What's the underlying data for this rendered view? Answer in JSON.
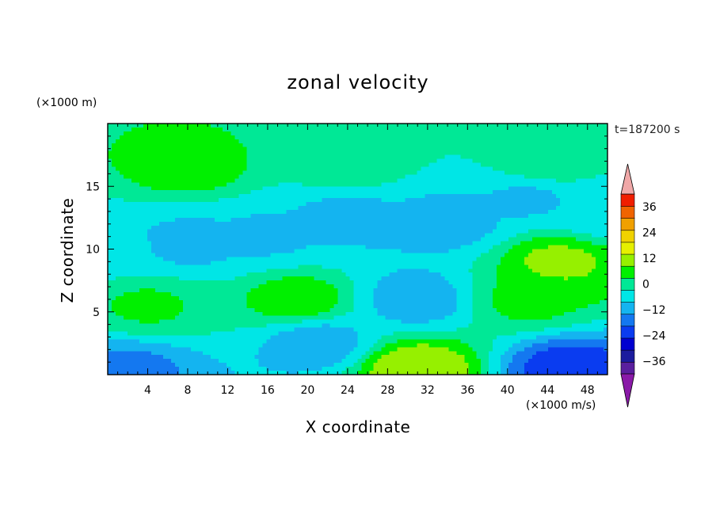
{
  "chart_data": {
    "type": "heatmap",
    "title": "zonal velocity",
    "xlabel": "X coordinate",
    "ylabel": "Z coordinate",
    "x_unit": "(×1000 m/s)",
    "y_unit": "(×1000 m)",
    "time_label": "t=187200 s",
    "xlim": [
      0,
      50
    ],
    "ylim": [
      0,
      20
    ],
    "x_ticks": [
      4,
      8,
      12,
      16,
      20,
      24,
      28,
      32,
      36,
      40,
      44,
      48
    ],
    "y_ticks": [
      5,
      10,
      15
    ],
    "colorbar": {
      "levels": [
        -42,
        -36,
        -30,
        -24,
        -18,
        -12,
        -6,
        0,
        6,
        12,
        18,
        24,
        30,
        36,
        42
      ],
      "colors": [
        "#5a1f9e",
        "#1c1c9e",
        "#0000d0",
        "#0a3cf0",
        "#1478f0",
        "#14b4f0",
        "#00e6e6",
        "#00e896",
        "#00f000",
        "#96f000",
        "#e6f000",
        "#f0d200",
        "#f0a000",
        "#f06400",
        "#f01e00"
      ],
      "under_color": "#8a1aa8",
      "over_color": "#f0a8a8",
      "tick_values": [
        36,
        24,
        12,
        0,
        -12,
        -24,
        -36
      ],
      "tick_labels": [
        "36",
        "24",
        "12",
        "0",
        "−12",
        "−24",
        "−36"
      ]
    },
    "features": [
      {
        "x": 0,
        "z": 10,
        "u": -4
      },
      {
        "x": 8,
        "z": 10.5,
        "u": -8
      },
      {
        "x": 16,
        "z": 11,
        "u": -7
      },
      {
        "x": 24,
        "z": 12.5,
        "u": -8
      },
      {
        "x": 34,
        "z": 12,
        "u": -9
      },
      {
        "x": 42,
        "z": 14,
        "u": -7
      },
      {
        "x": 50,
        "z": 13,
        "u": -6
      },
      {
        "x": 8,
        "z": 16.5,
        "u": 9
      },
      {
        "x": 24,
        "z": 17,
        "u": 5
      },
      {
        "x": 44,
        "z": 17,
        "u": 5
      },
      {
        "x": 4,
        "z": 5.5,
        "u": 7
      },
      {
        "x": 19,
        "z": 6,
        "u": 10
      },
      {
        "x": 45,
        "z": 9,
        "u": 14
      },
      {
        "x": 42,
        "z": 6,
        "u": 8
      },
      {
        "x": 31,
        "z": 0.5,
        "u": 18
      },
      {
        "x": 31,
        "z": 6,
        "u": -10
      },
      {
        "x": 21,
        "z": 2.5,
        "u": -10
      },
      {
        "x": 46,
        "z": 0.4,
        "u": -22
      },
      {
        "x": 2,
        "z": 0.3,
        "u": -14
      }
    ]
  }
}
